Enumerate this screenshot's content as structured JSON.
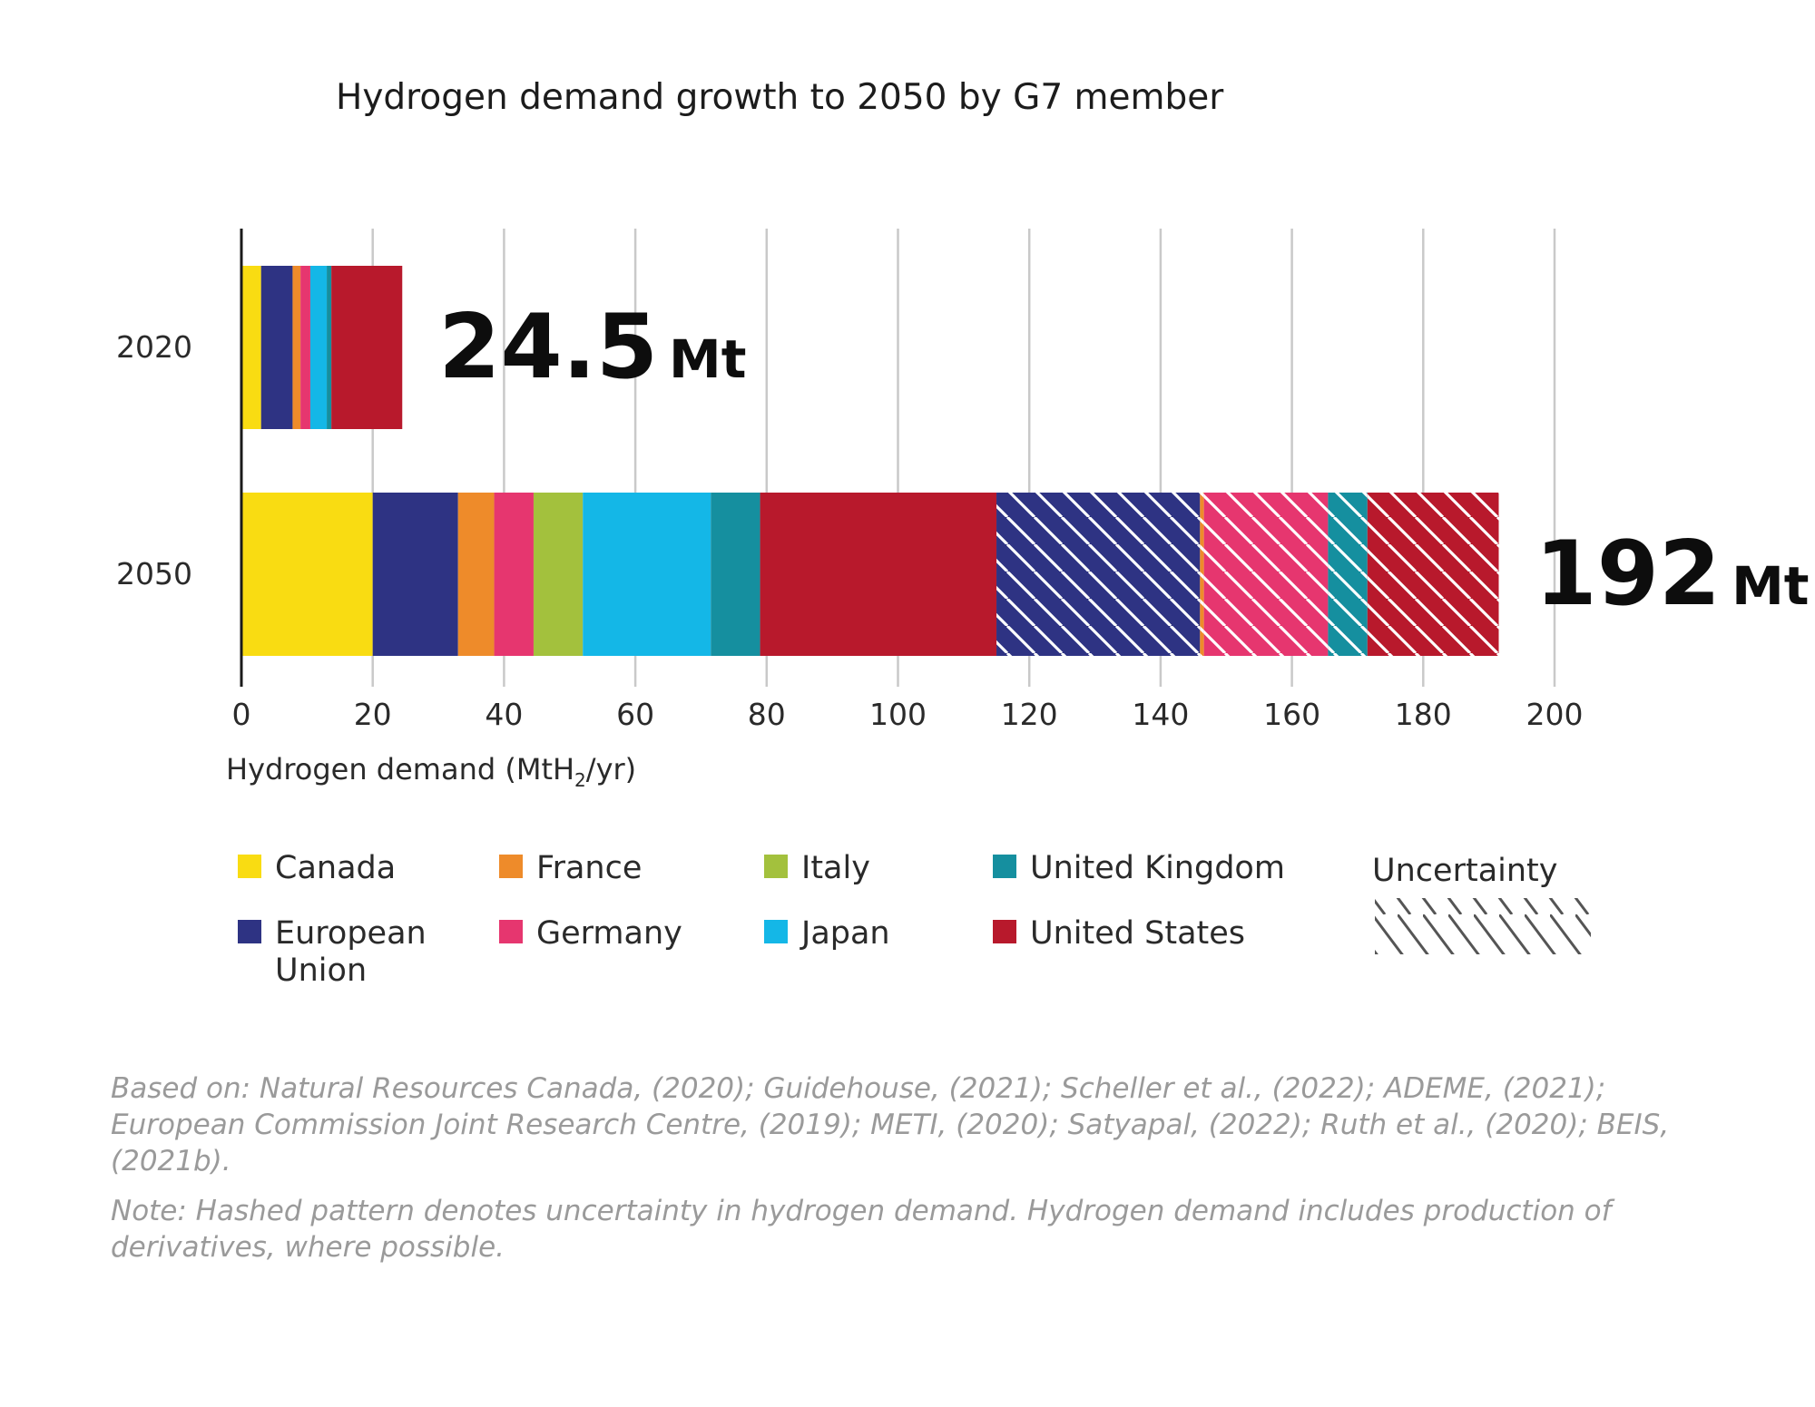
{
  "chart_data": {
    "type": "bar",
    "orientation": "horizontal",
    "stacked": true,
    "title": "Hydrogen demand growth to 2050 by G7 member",
    "xlabel": "Hydrogen demand (MtH",
    "xlabel_sub": "2",
    "xlabel_tail": "/yr)",
    "xlim": [
      0,
      200
    ],
    "xticks": [
      "0",
      "20",
      "40",
      "60",
      "80",
      "100",
      "120",
      "140",
      "160",
      "180",
      "200"
    ],
    "xtick_values": [
      0,
      20,
      40,
      60,
      80,
      100,
      120,
      140,
      160,
      180,
      200
    ],
    "grid": "vertical",
    "categories": [
      "2020",
      "2050"
    ],
    "totals": [
      {
        "number": "24.5",
        "unit": "Mt"
      },
      {
        "number": "192",
        "unit": "Mt"
      }
    ],
    "colors": {
      "Canada": "#f9dc12",
      "European Union": "#2e3383",
      "France": "#ee8b2a",
      "Germany": "#e6366f",
      "Italy": "#a3c13d",
      "Japan": "#14b7e7",
      "United Kingdom": "#158f9f",
      "United States": "#b8192c"
    },
    "rows": [
      {
        "category": "2020",
        "segments": [
          {
            "series": "Canada",
            "start": 0,
            "end": 3,
            "hatched": false
          },
          {
            "series": "European Union",
            "start": 3,
            "end": 7.8,
            "hatched": false
          },
          {
            "series": "France",
            "start": 7.8,
            "end": 9,
            "hatched": false
          },
          {
            "series": "Germany",
            "start": 9,
            "end": 10.5,
            "hatched": false
          },
          {
            "series": "Japan",
            "start": 10.5,
            "end": 13,
            "hatched": false
          },
          {
            "series": "United Kingdom",
            "start": 13,
            "end": 13.7,
            "hatched": false
          },
          {
            "series": "United States",
            "start": 13.7,
            "end": 24.5,
            "hatched": false
          }
        ]
      },
      {
        "category": "2050",
        "segments": [
          {
            "series": "Canada",
            "start": 0,
            "end": 20,
            "hatched": false
          },
          {
            "series": "European Union",
            "start": 20,
            "end": 33,
            "hatched": false
          },
          {
            "series": "France",
            "start": 33,
            "end": 38.5,
            "hatched": false
          },
          {
            "series": "Germany",
            "start": 38.5,
            "end": 44.5,
            "hatched": false
          },
          {
            "series": "Italy",
            "start": 44.5,
            "end": 52,
            "hatched": false
          },
          {
            "series": "Japan",
            "start": 52,
            "end": 71.5,
            "hatched": false
          },
          {
            "series": "United Kingdom",
            "start": 71.5,
            "end": 79,
            "hatched": false
          },
          {
            "series": "United States",
            "start": 79,
            "end": 115,
            "hatched": false
          },
          {
            "series": "European Union",
            "start": 115,
            "end": 146,
            "hatched": true
          },
          {
            "series": "France",
            "start": 146,
            "end": 146.6,
            "hatched": true
          },
          {
            "series": "Germany",
            "start": 146.6,
            "end": 165.5,
            "hatched": true
          },
          {
            "series": "United Kingdom",
            "start": 165.5,
            "end": 171.5,
            "hatched": true
          },
          {
            "series": "United States",
            "start": 171.5,
            "end": 191.5,
            "hatched": true
          }
        ]
      }
    ],
    "legend": {
      "placement": "bottom",
      "items": [
        {
          "label": "Canada",
          "series": "Canada"
        },
        {
          "label": "France",
          "series": "France"
        },
        {
          "label": "Italy",
          "series": "Italy"
        },
        {
          "label": "United Kingdom",
          "series": "United Kingdom"
        },
        {
          "label": "European",
          "label_line2": "Union",
          "series": "European Union"
        },
        {
          "label": "Germany",
          "series": "Germany"
        },
        {
          "label": "Japan",
          "series": "Japan"
        },
        {
          "label": "United States",
          "series": "United States"
        }
      ],
      "uncertainty_label": "Uncertainty"
    }
  },
  "notes": {
    "based_on": "Based on: Natural Resources Canada, (2020); Guidehouse, (2021); Scheller et al., (2022); ADEME, (2021); European Commission Joint Research Centre, (2019); METI, (2020); Satyapal, (2022); Ruth et al., (2020); BEIS, (2021b).",
    "note": "Note: Hashed pattern denotes uncertainty in hydrogen demand. Hydrogen demand includes production of derivatives, where possible."
  }
}
